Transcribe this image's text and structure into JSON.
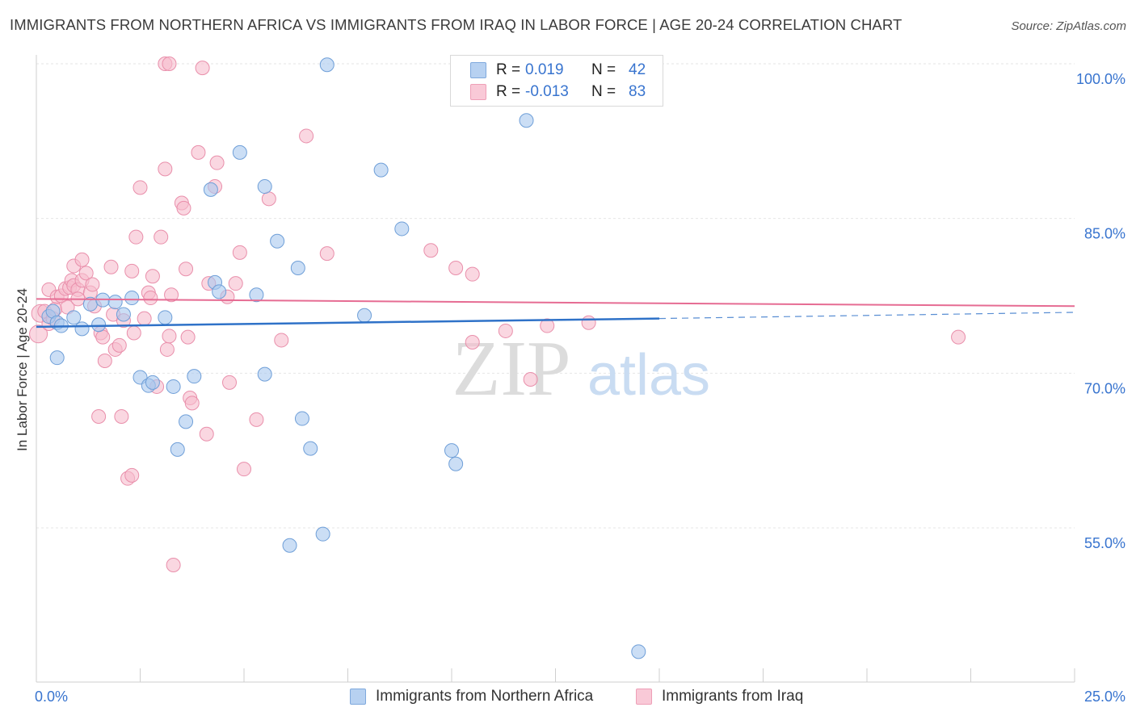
{
  "title": "IMMIGRANTS FROM NORTHERN AFRICA VS IMMIGRANTS FROM IRAQ IN LABOR FORCE | AGE 20-24 CORRELATION CHART",
  "source": "Source: ZipAtlas.com",
  "watermark": {
    "zip": "ZIP",
    "atlas": "atlas"
  },
  "colors": {
    "blue_fill": "#a9c8ee",
    "blue_stroke": "#6f9fd8",
    "blue_line": "#2f72c8",
    "pink_fill": "#f6bccd",
    "pink_stroke": "#e98fab",
    "pink_line": "#e66c93",
    "tick_label": "#3874cf",
    "grid": "#e6e6e6"
  },
  "legend": {
    "rows": [
      {
        "r_label": "R =",
        "r_value": "0.019",
        "n_label": "N =",
        "n_value": "42"
      },
      {
        "r_label": "R =",
        "r_value": "-0.013",
        "n_label": "N =",
        "n_value": "83"
      }
    ]
  },
  "bottom_legend": [
    "Immigrants from Northern Africa",
    "Immigrants from Iraq"
  ],
  "chart_data": {
    "type": "scatter",
    "title": "IMMIGRANTS FROM NORTHERN AFRICA VS IMMIGRANTS FROM IRAQ IN LABOR FORCE | AGE 20-24 CORRELATION CHART",
    "xlabel": "",
    "ylabel": "In Labor Force | Age 20-24",
    "xlim": [
      0,
      25
    ],
    "ylim": [
      40,
      102
    ],
    "x_tick_labels": [
      "0.0%",
      "25.0%"
    ],
    "y_ticks": [
      55,
      70,
      85,
      100
    ],
    "y_tick_labels": [
      "55.0%",
      "70.0%",
      "85.0%",
      "100.0%"
    ],
    "grid": true,
    "legend_position": "top-center",
    "series": [
      {
        "name": "Immigrants from Northern Africa",
        "color": "#a9c8ee",
        "r": 0.019,
        "n": 42,
        "trend": {
          "x": [
            0,
            15
          ],
          "y": [
            74.5,
            75.3
          ],
          "dashed_to": [
            25,
            75.9
          ]
        },
        "points": [
          [
            0.3,
            75.5
          ],
          [
            0.4,
            76.0
          ],
          [
            0.5,
            74.9
          ],
          [
            0.6,
            74.6
          ],
          [
            0.5,
            71.5
          ],
          [
            0.9,
            75.4
          ],
          [
            1.1,
            74.3
          ],
          [
            1.3,
            76.7
          ],
          [
            1.5,
            74.7
          ],
          [
            1.6,
            77.1
          ],
          [
            1.9,
            76.9
          ],
          [
            2.1,
            75.7
          ],
          [
            2.3,
            77.3
          ],
          [
            2.5,
            69.6
          ],
          [
            2.7,
            68.8
          ],
          [
            2.8,
            69.1
          ],
          [
            3.1,
            75.4
          ],
          [
            3.3,
            68.7
          ],
          [
            3.6,
            65.3
          ],
          [
            3.4,
            62.6
          ],
          [
            3.8,
            69.7
          ],
          [
            4.2,
            87.8
          ],
          [
            4.3,
            78.8
          ],
          [
            4.4,
            77.9
          ],
          [
            4.9,
            91.4
          ],
          [
            5.3,
            77.6
          ],
          [
            5.5,
            88.1
          ],
          [
            5.5,
            69.9
          ],
          [
            5.8,
            82.8
          ],
          [
            6.1,
            53.3
          ],
          [
            6.3,
            80.2
          ],
          [
            6.4,
            65.6
          ],
          [
            6.6,
            62.7
          ],
          [
            6.9,
            54.4
          ],
          [
            7.0,
            99.9
          ],
          [
            7.9,
            75.6
          ],
          [
            8.3,
            89.7
          ],
          [
            8.8,
            84.0
          ],
          [
            10.0,
            62.5
          ],
          [
            10.1,
            61.2
          ],
          [
            11.8,
            94.5
          ],
          [
            14.5,
            43.0
          ]
        ]
      },
      {
        "name": "Immigrants from Iraq",
        "color": "#f6bccd",
        "r": -0.013,
        "n": 83,
        "trend": {
          "x": [
            0,
            25
          ],
          "y": [
            77.2,
            76.5
          ]
        },
        "points": [
          [
            0.05,
            73.8
          ],
          [
            0.1,
            75.8
          ],
          [
            0.2,
            76.0
          ],
          [
            0.3,
            74.8
          ],
          [
            0.3,
            78.1
          ],
          [
            0.4,
            75.3
          ],
          [
            0.45,
            76.2
          ],
          [
            0.5,
            77.4
          ],
          [
            0.6,
            77.5
          ],
          [
            0.7,
            78.2
          ],
          [
            0.75,
            76.4
          ],
          [
            0.8,
            78.3
          ],
          [
            0.85,
            79.0
          ],
          [
            0.9,
            78.5
          ],
          [
            0.9,
            80.4
          ],
          [
            1.0,
            78.1
          ],
          [
            1.0,
            77.2
          ],
          [
            1.1,
            81.0
          ],
          [
            1.1,
            79.0
          ],
          [
            1.2,
            79.7
          ],
          [
            1.3,
            77.8
          ],
          [
            1.35,
            78.6
          ],
          [
            1.4,
            76.5
          ],
          [
            1.5,
            65.8
          ],
          [
            1.55,
            73.9
          ],
          [
            1.6,
            73.5
          ],
          [
            1.65,
            71.2
          ],
          [
            1.8,
            80.3
          ],
          [
            1.85,
            75.7
          ],
          [
            1.9,
            72.3
          ],
          [
            2.0,
            72.7
          ],
          [
            2.05,
            65.8
          ],
          [
            2.1,
            75.1
          ],
          [
            2.2,
            59.8
          ],
          [
            2.3,
            60.1
          ],
          [
            2.3,
            79.9
          ],
          [
            2.4,
            83.2
          ],
          [
            2.5,
            88.0
          ],
          [
            2.6,
            75.3
          ],
          [
            2.7,
            77.8
          ],
          [
            2.75,
            77.3
          ],
          [
            2.8,
            79.4
          ],
          [
            2.9,
            68.7
          ],
          [
            3.0,
            83.2
          ],
          [
            3.1,
            89.8
          ],
          [
            3.15,
            72.3
          ],
          [
            3.2,
            73.6
          ],
          [
            3.3,
            51.4
          ],
          [
            3.5,
            86.5
          ],
          [
            3.55,
            86.0
          ],
          [
            3.6,
            80.1
          ],
          [
            3.65,
            73.5
          ],
          [
            3.7,
            67.6
          ],
          [
            3.75,
            67.1
          ],
          [
            3.9,
            91.4
          ],
          [
            4.1,
            64.1
          ],
          [
            4.15,
            78.7
          ],
          [
            4.3,
            88.1
          ],
          [
            4.35,
            90.4
          ],
          [
            4.6,
            77.4
          ],
          [
            4.65,
            69.1
          ],
          [
            4.8,
            78.7
          ],
          [
            4.9,
            81.7
          ],
          [
            5.0,
            60.7
          ],
          [
            5.3,
            65.5
          ],
          [
            5.6,
            86.9
          ],
          [
            5.9,
            73.2
          ],
          [
            6.5,
            93.0
          ],
          [
            7.0,
            81.6
          ],
          [
            3.1,
            100.0
          ],
          [
            3.2,
            100.0
          ],
          [
            4.0,
            99.6
          ],
          [
            9.5,
            81.9
          ],
          [
            10.1,
            80.2
          ],
          [
            10.5,
            79.6
          ],
          [
            10.5,
            73.0
          ],
          [
            11.3,
            74.1
          ],
          [
            11.9,
            69.4
          ],
          [
            12.3,
            74.6
          ],
          [
            13.3,
            74.9
          ],
          [
            22.2,
            73.5
          ],
          [
            3.25,
            77.6
          ],
          [
            2.35,
            73.9
          ]
        ]
      }
    ]
  }
}
